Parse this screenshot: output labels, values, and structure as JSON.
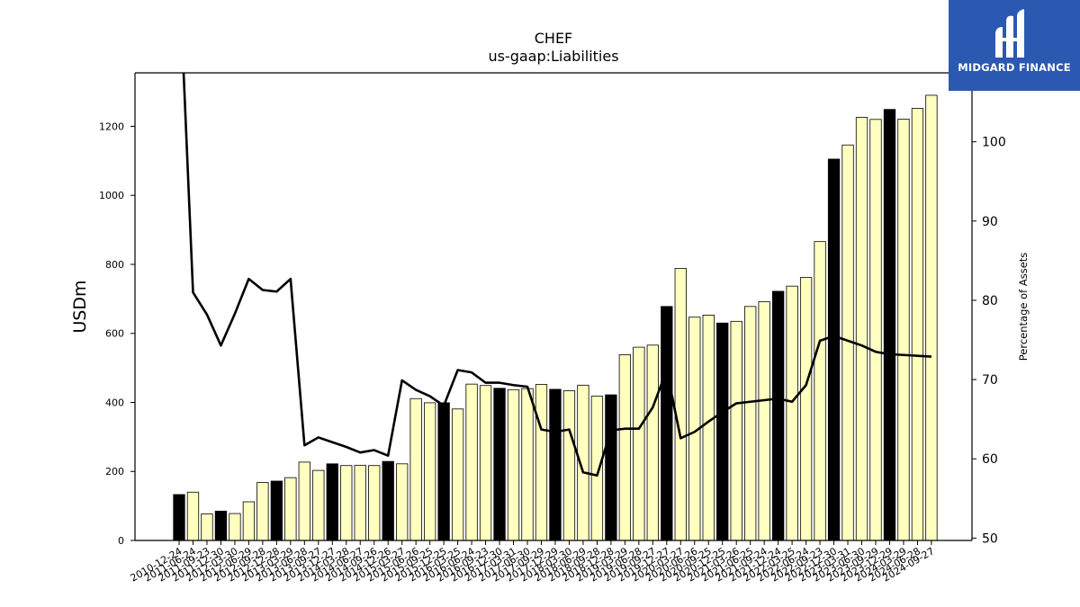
{
  "chart_data": {
    "type": "bar",
    "title": "CHEF",
    "subtitle": "us-gaap:Liabilities",
    "ylabel": "USDm",
    "y2label": "Percentage of Assets",
    "ylim": [
      0,
      1355
    ],
    "y2lim": [
      49.7,
      108.7
    ],
    "yticks": [
      0,
      200,
      400,
      600,
      800,
      1000,
      1200
    ],
    "y2ticks": [
      50,
      60,
      70,
      80,
      90,
      100
    ],
    "categories": [
      "2010-12-24",
      "2011-06-24",
      "2011-09-23",
      "2011-12-30",
      "2012-03-30",
      "2012-06-29",
      "2012-09-28",
      "2012-12-28",
      "2013-03-29",
      "2013-06-28",
      "2013-09-27",
      "2013-12-27",
      "2014-03-28",
      "2014-06-27",
      "2014-09-26",
      "2014-12-26",
      "2015-03-27",
      "2015-06-26",
      "2015-09-25",
      "2015-12-25",
      "2016-03-25",
      "2016-06-24",
      "2016-09-23",
      "2016-12-30",
      "2017-03-31",
      "2017-06-30",
      "2017-09-29",
      "2017-12-29",
      "2018-03-30",
      "2018-06-29",
      "2018-09-28",
      "2018-12-28",
      "2019-03-29",
      "2019-06-28",
      "2019-09-27",
      "2019-12-27",
      "2020-03-27",
      "2020-06-26",
      "2020-09-25",
      "2020-12-25",
      "2021-03-26",
      "2021-06-25",
      "2021-09-24",
      "2021-12-24",
      "2022-03-25",
      "2022-06-24",
      "2022-09-23",
      "2022-12-30",
      "2023-03-31",
      "2023-06-30",
      "2023-09-29",
      "2023-12-29",
      "2024-03-29",
      "2024-06-28",
      "2024-09-27"
    ],
    "series": [
      {
        "type": "bar",
        "values": [
          133,
          140,
          77,
          85,
          78,
          112,
          168,
          172,
          182,
          227,
          203,
          222,
          217,
          218,
          217,
          229,
          222,
          411,
          399,
          399,
          381,
          453,
          449,
          441,
          437,
          440,
          452,
          438,
          434,
          450,
          418,
          422,
          538,
          560,
          566,
          678,
          788,
          647,
          653,
          630,
          635,
          678,
          692,
          722,
          737,
          762,
          866,
          1105,
          1146,
          1226,
          1220,
          1249,
          1221,
          1252,
          1290
        ],
        "highlight": [
          true,
          false,
          false,
          true,
          false,
          false,
          false,
          true,
          false,
          false,
          false,
          true,
          false,
          false,
          false,
          true,
          false,
          false,
          false,
          true,
          false,
          false,
          false,
          true,
          false,
          false,
          false,
          true,
          false,
          false,
          false,
          true,
          false,
          false,
          false,
          true,
          false,
          false,
          false,
          true,
          false,
          false,
          false,
          true,
          false,
          false,
          false,
          true,
          false,
          false,
          false,
          true,
          false,
          false,
          false
        ],
        "color": "#ffffc0",
        "highlight_color": "#000000"
      },
      {
        "type": "line",
        "axis": "right",
        "values": [
          122,
          81,
          78.2,
          74.3,
          78.3,
          82.7,
          81.3,
          81.1,
          82.7,
          61.7,
          62.7,
          62.1,
          61.5,
          60.8,
          61.1,
          60.4,
          69.9,
          68.7,
          67.9,
          66.7,
          71.2,
          70.9,
          69.6,
          69.6,
          69.3,
          69.1,
          63.7,
          63.4,
          63.7,
          58.3,
          57.9,
          63.6,
          63.8,
          63.8,
          66.5,
          71.2,
          62.6,
          63.4,
          64.7,
          65.9,
          67.0,
          67.2,
          67.4,
          67.6,
          67.2,
          69.3,
          74.9,
          75.5,
          74.9,
          74.3,
          73.5,
          73.2,
          73.1,
          73.0,
          72.9
        ],
        "color": "#000000"
      }
    ],
    "grid": false,
    "legend": "none"
  },
  "logo": {
    "text": "MIDGARD FINANCE",
    "color": "#2b58b0"
  }
}
